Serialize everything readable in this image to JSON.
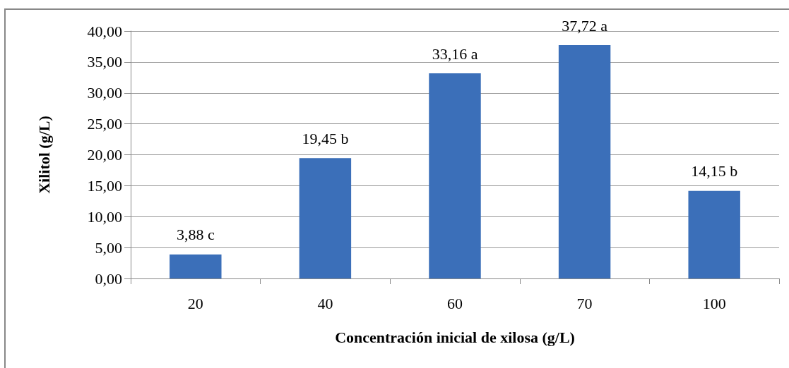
{
  "chart_data": {
    "type": "bar",
    "xlabel": "Concentración inicial de xilosa (g/L)",
    "ylabel": "Xilitol (g/L)",
    "categories": [
      "20",
      "40",
      "60",
      "70",
      "100"
    ],
    "values": [
      3.88,
      19.45,
      33.16,
      37.72,
      14.15
    ],
    "color": "#3b6fb9",
    "value_labels": [
      "3,88 c",
      "19,45 b",
      "33,16 a",
      "37,72 a",
      "14,15 b"
    ],
    "ylim": [
      0,
      40
    ],
    "yticks": [
      {
        "value": 0,
        "label": "0,00"
      },
      {
        "value": 5,
        "label": "5,00"
      },
      {
        "value": 10,
        "label": "10,00"
      },
      {
        "value": 15,
        "label": "15,00"
      },
      {
        "value": 20,
        "label": "20,00"
      },
      {
        "value": 25,
        "label": "25,00"
      },
      {
        "value": 30,
        "label": "30,00"
      },
      {
        "value": 35,
        "label": "35,00"
      },
      {
        "value": 40,
        "label": "40,00"
      }
    ],
    "grid": "y"
  }
}
